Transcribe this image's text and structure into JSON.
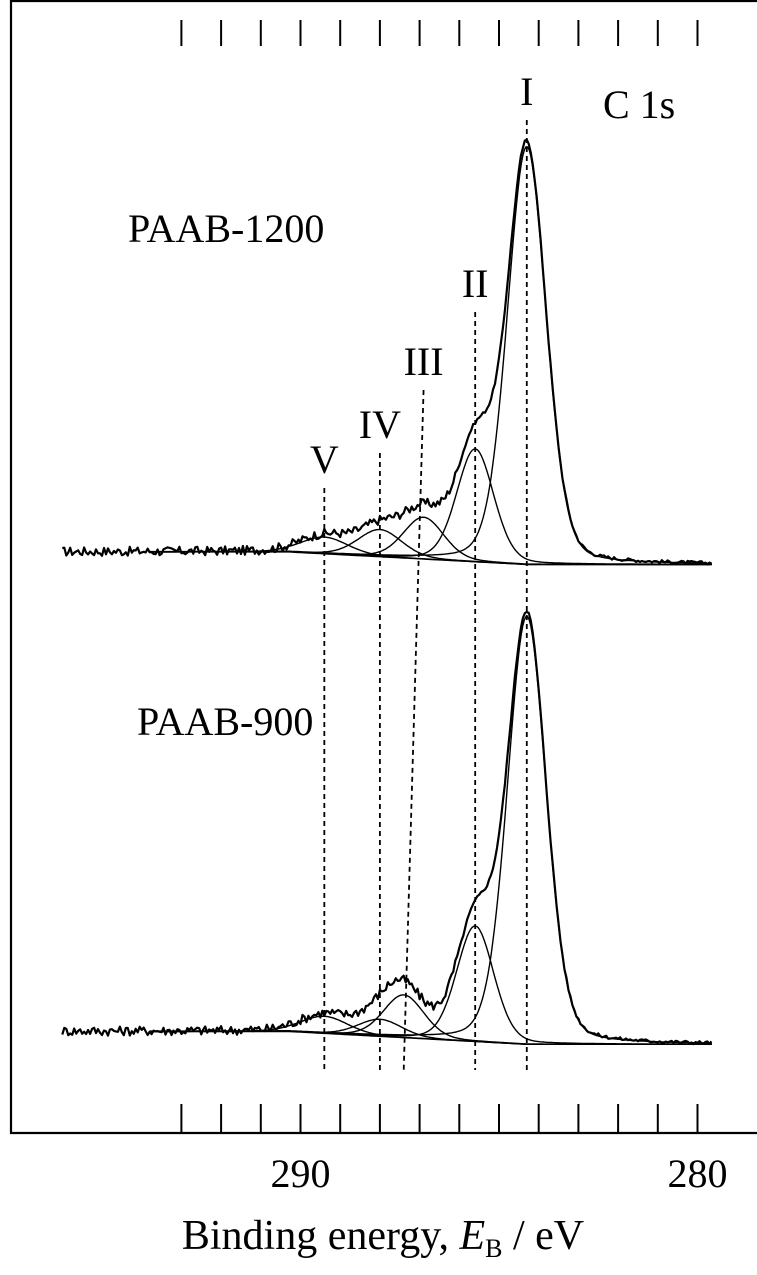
{
  "chart_data": {
    "type": "line",
    "x_axis": {
      "label_main": "Binding energy, ",
      "label_symbol": "E",
      "label_sub": "B",
      "label_unit": " / eV",
      "range": [
        293.8,
        279.2
      ],
      "reversed": true,
      "ticks": [
        293,
        292,
        291,
        290,
        289,
        288,
        287,
        286,
        285,
        284,
        283,
        282,
        281,
        280
      ],
      "tick_labels": [
        {
          "value": 290,
          "text": "290"
        },
        {
          "value": 280,
          "text": "280"
        }
      ]
    },
    "y_axis": {
      "label": "",
      "ticks": false
    },
    "annotation_corner": "C 1s",
    "peaks": [
      {
        "label": "I",
        "energy": 284.3,
        "width": 1.15,
        "amp_top": 1.0,
        "amp_bottom": 1.0,
        "label_pos": "top"
      },
      {
        "label": "II",
        "energy": 285.6,
        "width": 1.1,
        "amp_top": 0.27,
        "amp_bottom": 0.27,
        "label_pos": "top"
      },
      {
        "label": "III",
        "energy": 286.9,
        "width": 1.2,
        "amp_top": 0.1,
        "amp_bottom": 0.1,
        "label_pos": "top",
        "energy_bottom": 287.4
      },
      {
        "label": "IV",
        "energy": 288.0,
        "width": 1.3,
        "amp_top": 0.065,
        "amp_bottom": 0.04,
        "label_pos": "top"
      },
      {
        "label": "V",
        "energy": 289.4,
        "width": 1.4,
        "amp_top": 0.04,
        "amp_bottom": 0.04,
        "label_pos": "top"
      }
    ],
    "series": [
      {
        "name": "PAAB-1200",
        "offset_index": 0
      },
      {
        "name": "PAAB-900",
        "offset_index": 1
      }
    ],
    "grid": false,
    "legend": "none"
  }
}
